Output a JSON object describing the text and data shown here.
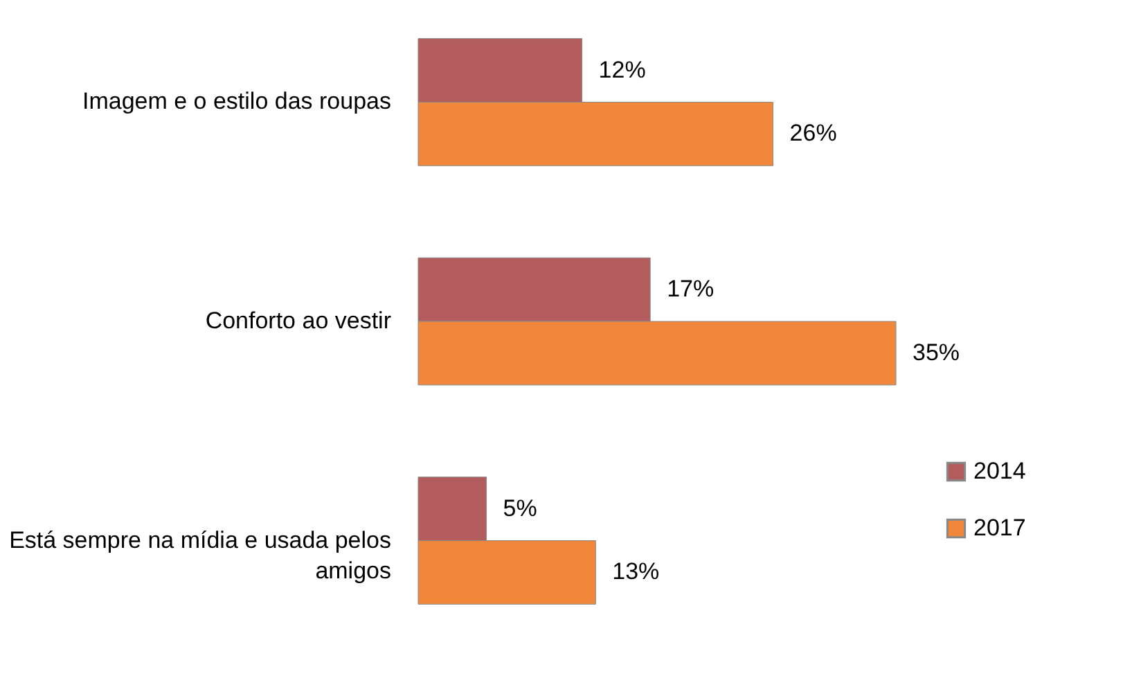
{
  "chart_data": {
    "type": "bar",
    "orientation": "horizontal",
    "categories": [
      "Imagem e o estilo das roupas",
      "Conforto ao vestir",
      "Está sempre na mídia e usada pelos amigos"
    ],
    "series": [
      {
        "name": "2014",
        "color": "#b35c5e",
        "values": [
          12,
          17,
          5
        ],
        "value_labels": [
          "12%",
          "17%",
          "5%"
        ]
      },
      {
        "name": "2017",
        "color": "#f0873a",
        "values": [
          26,
          35,
          13
        ],
        "value_labels": [
          "26%",
          "35%",
          "13%"
        ]
      }
    ],
    "legend": "bottom right",
    "grid": false,
    "tick_labels": "y"
  }
}
